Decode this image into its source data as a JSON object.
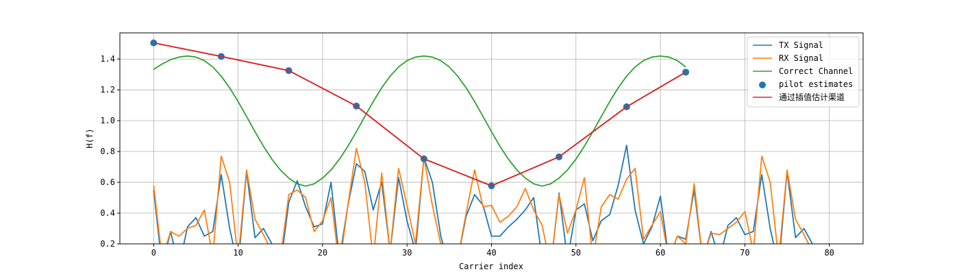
{
  "chart_data": {
    "type": "line",
    "title": "",
    "xlabel": "Carrier index",
    "ylabel": "H(f)",
    "xlim": [
      -4,
      84
    ],
    "ylim": [
      0.2,
      1.57
    ],
    "xticks": [
      0,
      10,
      20,
      30,
      40,
      50,
      60,
      70,
      80
    ],
    "yticks": [
      0.2,
      0.4,
      0.6,
      0.8,
      1.0,
      1.2,
      1.4
    ],
    "ytick_labels": [
      "0.2",
      "0.4",
      "0.6",
      "0.8",
      "1.0",
      "1.2",
      "1.4"
    ],
    "grid": true,
    "legend_position": "top-right",
    "series": [
      {
        "name": "TX Signal",
        "kind": "line",
        "color": "#1f77b4",
        "x": [
          0,
          1,
          2,
          3,
          4,
          5,
          6,
          7,
          8,
          9,
          10,
          11,
          12,
          13,
          14,
          15,
          16,
          17,
          18,
          19,
          20,
          21,
          22,
          23,
          24,
          25,
          26,
          27,
          28,
          29,
          30,
          31,
          32,
          33,
          34,
          35,
          36,
          37,
          38,
          39,
          40,
          41,
          42,
          43,
          44,
          45,
          46,
          47,
          48,
          49,
          50,
          51,
          52,
          53,
          54,
          55,
          56,
          57,
          58,
          59,
          60,
          61,
          62,
          63,
          64,
          65,
          66,
          67,
          68,
          69,
          70,
          71,
          72,
          73,
          74,
          75,
          76,
          77,
          78
        ],
        "y": [
          0.55,
          0.05,
          0.28,
          0.05,
          0.31,
          0.37,
          0.25,
          0.28,
          0.65,
          0.3,
          0.05,
          0.67,
          0.24,
          0.3,
          0.2,
          0.05,
          0.47,
          0.61,
          0.44,
          0.31,
          0.33,
          0.6,
          0.1,
          0.45,
          0.72,
          0.67,
          0.42,
          0.6,
          0.15,
          0.63,
          0.35,
          0.15,
          0.76,
          0.6,
          0.25,
          0.05,
          0.1,
          0.38,
          0.52,
          0.45,
          0.25,
          0.25,
          0.31,
          0.36,
          0.42,
          0.5,
          0.1,
          0.05,
          0.53,
          0.1,
          0.42,
          0.46,
          0.22,
          0.35,
          0.39,
          0.58,
          0.84,
          0.42,
          0.2,
          0.31,
          0.51,
          0.1,
          0.25,
          0.23,
          0.55,
          0.1,
          0.28,
          0.1,
          0.32,
          0.37,
          0.26,
          0.28,
          0.65,
          0.3,
          0.05,
          0.67,
          0.24,
          0.3,
          0.2
        ]
      },
      {
        "name": "RX Signal",
        "kind": "line",
        "color": "#ff7f0e",
        "x": [
          0,
          1,
          2,
          3,
          4,
          5,
          6,
          7,
          8,
          9,
          10,
          11,
          12,
          13,
          14,
          15,
          16,
          17,
          18,
          19,
          20,
          21,
          22,
          23,
          24,
          25,
          26,
          27,
          28,
          29,
          30,
          31,
          32,
          33,
          34,
          35,
          36,
          37,
          38,
          39,
          40,
          41,
          42,
          43,
          44,
          45,
          46,
          47,
          48,
          49,
          50,
          51,
          52,
          53,
          54,
          55,
          56,
          57,
          58,
          59,
          60,
          61,
          62,
          63,
          64,
          65,
          66,
          67,
          68,
          69,
          70,
          71,
          72,
          73,
          74,
          75,
          76,
          77,
          78
        ],
        "y": [
          0.58,
          0.1,
          0.28,
          0.25,
          0.3,
          0.32,
          0.42,
          0.12,
          0.77,
          0.6,
          0.1,
          0.68,
          0.36,
          0.26,
          0.15,
          0.1,
          0.52,
          0.55,
          0.5,
          0.28,
          0.35,
          0.5,
          0.05,
          0.45,
          0.82,
          0.6,
          0.1,
          0.66,
          0.15,
          0.69,
          0.45,
          0.2,
          0.76,
          0.45,
          0.2,
          0.1,
          0.1,
          0.4,
          0.68,
          0.44,
          0.45,
          0.34,
          0.38,
          0.44,
          0.56,
          0.42,
          0.32,
          0.05,
          0.52,
          0.27,
          0.42,
          0.63,
          0.1,
          0.44,
          0.52,
          0.49,
          0.62,
          0.69,
          0.23,
          0.32,
          0.41,
          0.1,
          0.25,
          0.2,
          0.59,
          0.1,
          0.27,
          0.26,
          0.3,
          0.34,
          0.41,
          0.15,
          0.77,
          0.6,
          0.1,
          0.68,
          0.36,
          0.26,
          0.15
        ]
      },
      {
        "name": "Correct Channel",
        "kind": "line",
        "color": "#2ca02c",
        "x": [
          0,
          1,
          2,
          3,
          4,
          5,
          6,
          7,
          8,
          9,
          10,
          11,
          12,
          13,
          14,
          15,
          16,
          17,
          18,
          19,
          20,
          21,
          22,
          23,
          24,
          25,
          26,
          27,
          28,
          29,
          30,
          31,
          32,
          33,
          34,
          35,
          36,
          37,
          38,
          39,
          40,
          41,
          42,
          43,
          44,
          45,
          46,
          47,
          48,
          49,
          50,
          51,
          52,
          53,
          54,
          55,
          56,
          57,
          58,
          59,
          60,
          61,
          62,
          63
        ],
        "y": [
          1.333,
          1.368,
          1.396,
          1.413,
          1.42,
          1.413,
          1.39,
          1.349,
          1.289,
          1.213,
          1.124,
          1.027,
          0.928,
          0.834,
          0.75,
          0.68,
          0.627,
          0.59,
          0.575,
          0.59,
          0.627,
          0.68,
          0.75,
          0.834,
          0.928,
          1.027,
          1.124,
          1.213,
          1.289,
          1.349,
          1.39,
          1.413,
          1.42,
          1.413,
          1.39,
          1.349,
          1.289,
          1.213,
          1.124,
          1.027,
          0.928,
          0.834,
          0.75,
          0.68,
          0.627,
          0.59,
          0.575,
          0.59,
          0.627,
          0.68,
          0.75,
          0.834,
          0.928,
          1.027,
          1.124,
          1.213,
          1.289,
          1.349,
          1.39,
          1.413,
          1.42,
          1.413,
          1.39,
          1.349
        ]
      },
      {
        "name": "pilot estimates",
        "kind": "scatter",
        "color": "#1f77b4",
        "x": [
          0,
          8,
          16,
          24,
          32,
          40,
          48,
          56,
          63
        ],
        "y": [
          1.505,
          1.417,
          1.325,
          1.095,
          0.752,
          0.577,
          0.765,
          1.09,
          1.315
        ]
      },
      {
        "name": "通过插值估计渠道",
        "kind": "line",
        "color": "#d62728",
        "x": [
          0,
          8,
          16,
          24,
          32,
          40,
          48,
          56,
          63
        ],
        "y": [
          1.505,
          1.417,
          1.325,
          1.095,
          0.752,
          0.577,
          0.765,
          1.09,
          1.315
        ]
      }
    ]
  }
}
